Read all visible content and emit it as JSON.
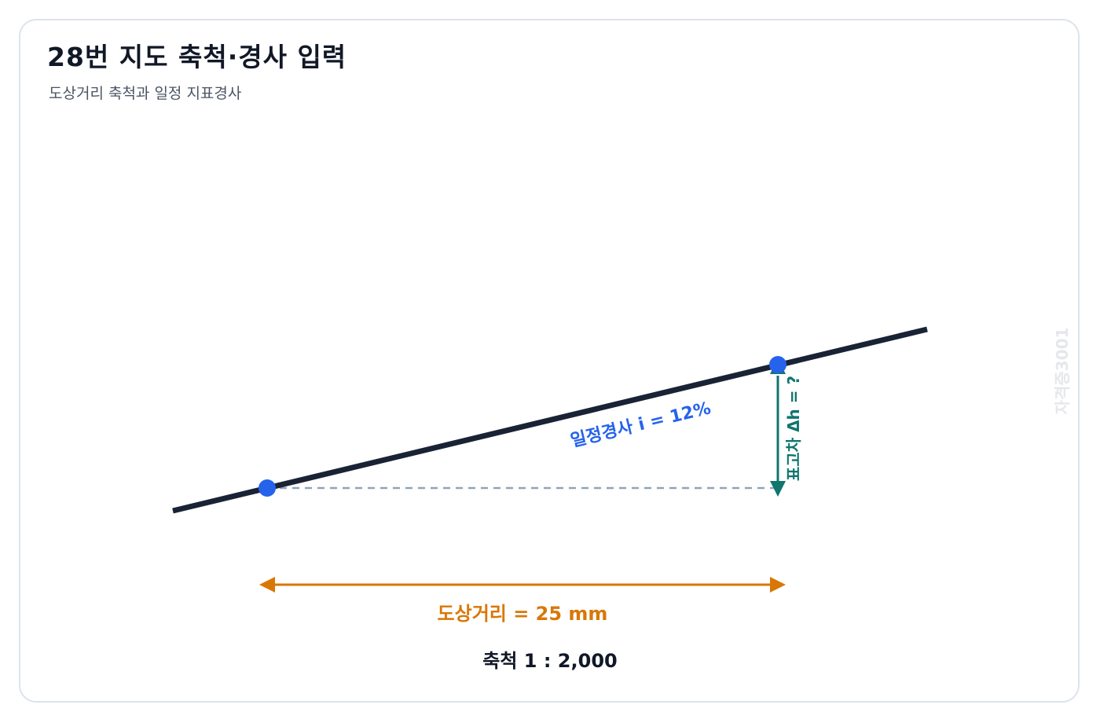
{
  "header": {
    "title": "28번 지도 축척·경사 입력",
    "subtitle": "도상거리 축척과 일정 지표경사"
  },
  "diagram": {
    "slope_label": "일정경사 i = 12%",
    "height_label": "표고차 Δh = ?",
    "distance_label": "도상거리 = 25 mm",
    "scale_label": "축척 1 : 2,000",
    "watermark": "자격증3001"
  },
  "colors": {
    "terrain_line": "#1a2235",
    "point": "#2563eb",
    "height_arrow": "#0f766e",
    "distance_arrow": "#d97706",
    "reference_dash": "#94a3b8"
  }
}
